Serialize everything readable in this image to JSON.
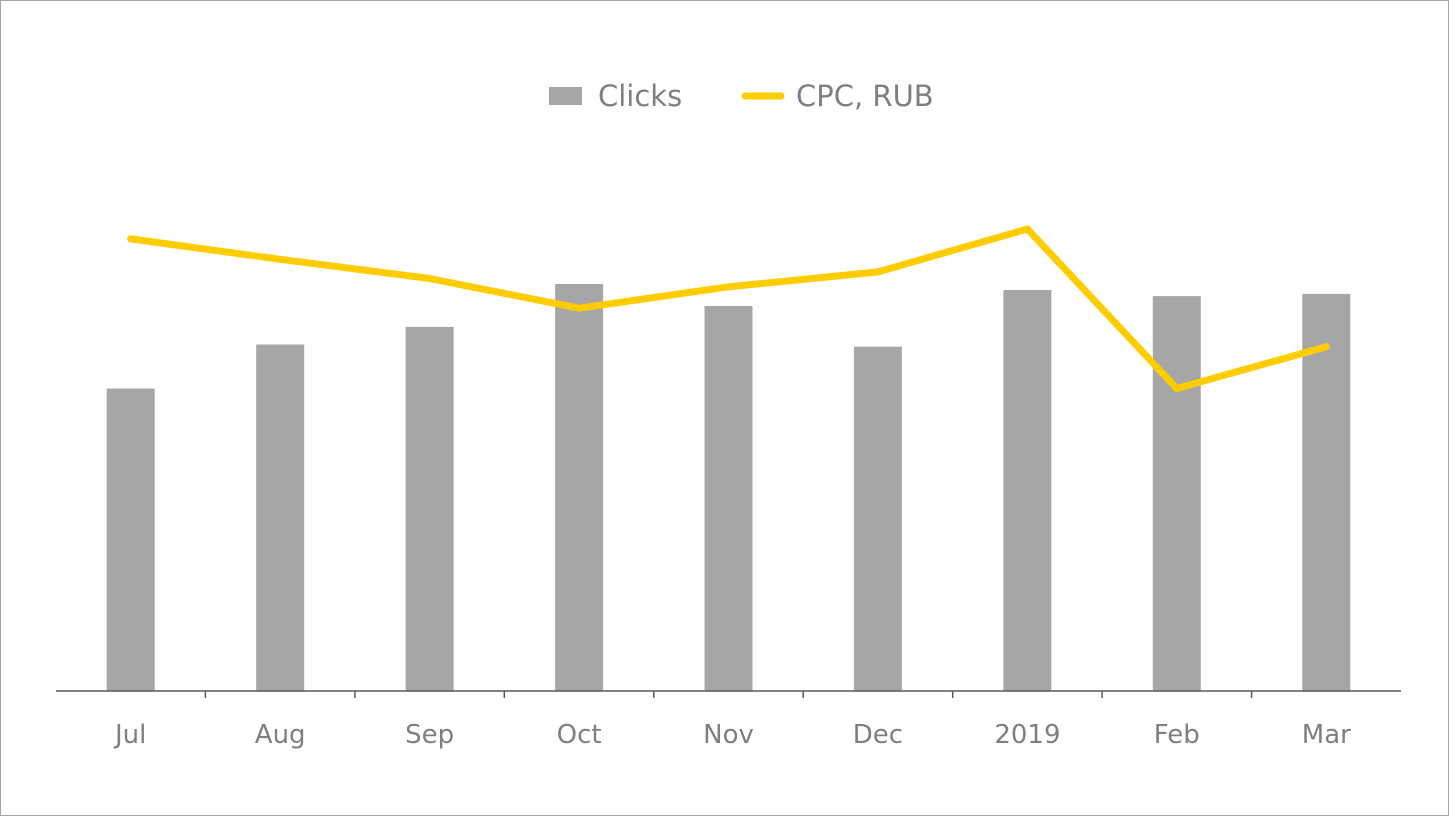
{
  "chart_data": {
    "type": "bar",
    "categories": [
      "Jul",
      "Aug",
      "Sep",
      "Oct",
      "Nov",
      "Dec",
      "2019",
      "Feb",
      "Mar"
    ],
    "series": [
      {
        "name": "Clicks",
        "type": "bar",
        "axis": "left",
        "color": "#a6a6a6",
        "values": [
          55,
          63,
          66.2,
          74,
          70,
          62.6,
          72.9,
          71.8,
          72.2
        ]
      },
      {
        "name": "CPC, RUB",
        "type": "line",
        "axis": "right",
        "color": "#ffcc00",
        "values": [
          82.2,
          78.5,
          75,
          69.6,
          73.5,
          76.2,
          84,
          55,
          62.6
        ]
      }
    ],
    "ylim": [
      0,
      100
    ],
    "y2lim": [
      0,
      100
    ],
    "grid": false,
    "legend": "top-center",
    "title": "",
    "xlabel": "",
    "ylabel": ""
  }
}
